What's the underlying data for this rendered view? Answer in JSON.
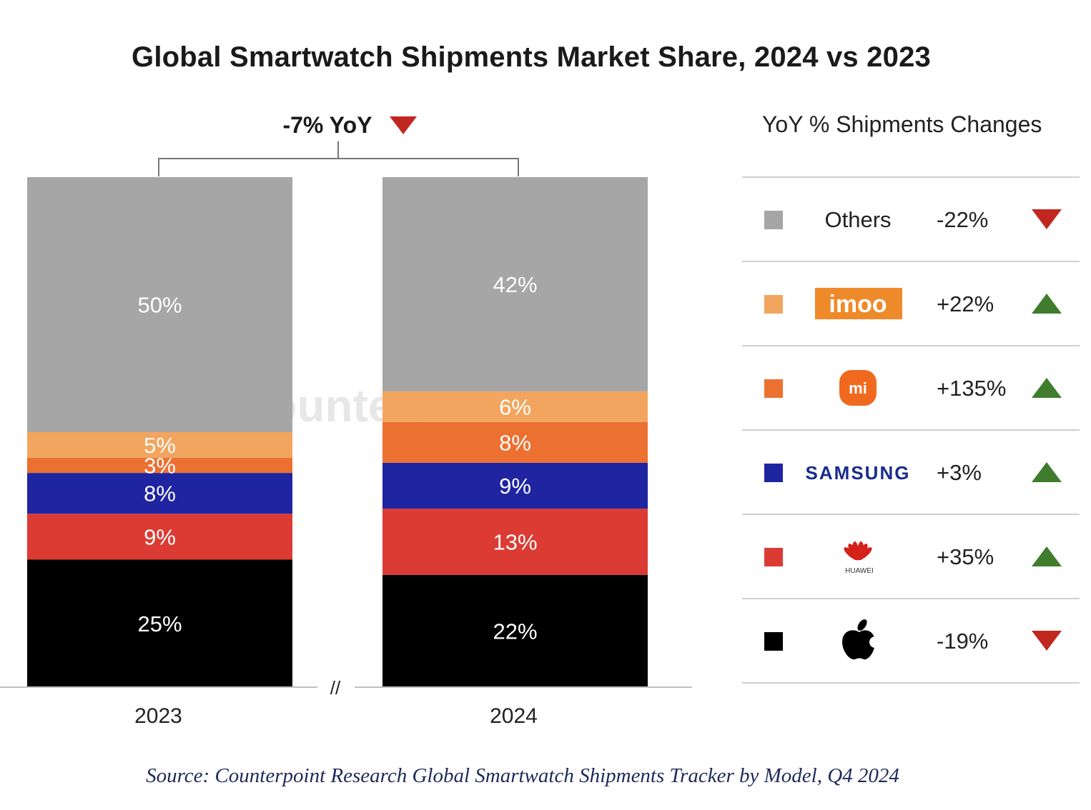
{
  "title": "Global Smartwatch Shipments Market Share, 2024 vs 2023",
  "total_change": {
    "label": "-7% YoY",
    "direction": "down"
  },
  "legend_title": "YoY % Shipments Changes",
  "axis_break": "//",
  "watermark": "Counterpoint",
  "source": "Source: Counterpoint Research Global Smartwatch Shipments Tracker by Model, Q4 2024",
  "colors": {
    "up": "#3f7d2c",
    "down": "#c0281f"
  },
  "chart_data": {
    "type": "bar",
    "stacked": true,
    "categories": [
      "2023",
      "2024"
    ],
    "ylim": [
      0,
      100
    ],
    "grid": false,
    "legend_position": "right",
    "series": [
      {
        "name": "Apple",
        "values": [
          25,
          22
        ],
        "color": "#000000",
        "label_color": "#ffffff",
        "yoy": "-19%",
        "direction": "down",
        "brand": "apple-logo"
      },
      {
        "name": "HUAWEI",
        "values": [
          9,
          13
        ],
        "color": "#db3b33",
        "label_color": "#ffffff",
        "yoy": "+35%",
        "direction": "up",
        "brand": "huawei-logo"
      },
      {
        "name": "SAMSUNG",
        "values": [
          8,
          9
        ],
        "color": "#1f24a1",
        "label_color": "#ffffff",
        "yoy": "+3%",
        "direction": "up",
        "brand": "samsung-logo"
      },
      {
        "name": "mi",
        "values": [
          3,
          8
        ],
        "color": "#ec7030",
        "label_color": "#ffffff",
        "yoy": "+135%",
        "direction": "up",
        "brand": "xiaomi-logo"
      },
      {
        "name": "imoo",
        "values": [
          5,
          6
        ],
        "color": "#f2a55e",
        "label_color": "#ffffff",
        "yoy": "+22%",
        "direction": "up",
        "brand": "imoo-logo"
      },
      {
        "name": "Others",
        "values": [
          50,
          42
        ],
        "color": "#a6a6a6",
        "label_color": "#ffffff",
        "yoy": "-22%",
        "direction": "down",
        "brand": "text"
      }
    ],
    "value_labels": [
      [
        "25%",
        "9%",
        "8%",
        "3%",
        "5%",
        "50%"
      ],
      [
        "22%",
        "13%",
        "9%",
        "8%",
        "6%",
        "42%"
      ]
    ]
  }
}
